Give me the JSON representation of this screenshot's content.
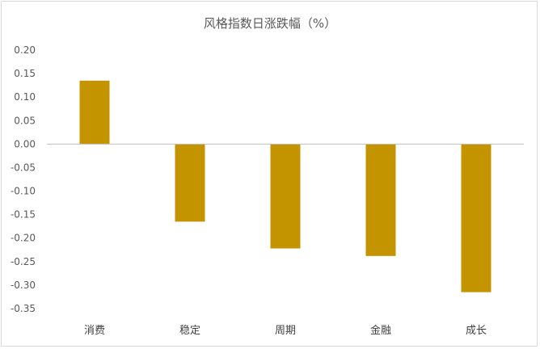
{
  "chart_data": {
    "type": "bar",
    "title": "风格指数日涨跌幅（%）",
    "categories": [
      "消费",
      "稳定",
      "周期",
      "金融",
      "成长"
    ],
    "values": [
      0.135,
      -0.165,
      -0.222,
      -0.238,
      -0.315
    ],
    "ylim": [
      -0.35,
      0.2
    ],
    "yticks": [
      "0.20",
      "0.15",
      "0.10",
      "0.05",
      "0.00",
      "-0.05",
      "-0.10",
      "-0.15",
      "-0.20",
      "-0.25",
      "-0.30",
      "-0.35"
    ],
    "ytick_values": [
      0.2,
      0.15,
      0.1,
      0.05,
      0.0,
      -0.05,
      -0.1,
      -0.15,
      -0.2,
      -0.25,
      -0.3,
      -0.35
    ],
    "bar_color": "#C39400",
    "axis_color": "#bfbfbf",
    "grid": false,
    "legend": "none"
  }
}
